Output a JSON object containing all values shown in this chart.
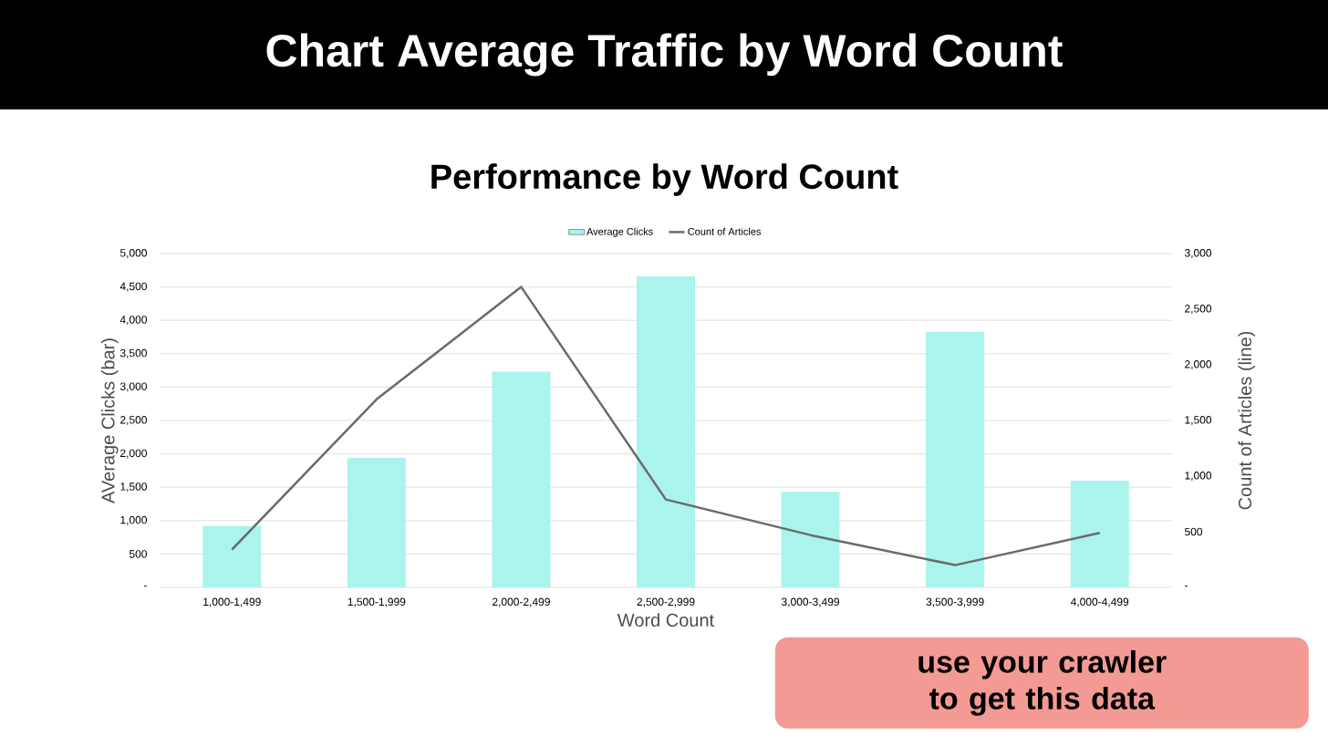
{
  "chart_data": {
    "type": "bar",
    "title": "Chart Average Traffic by Word Count",
    "subtitle": "Performance by Word Count",
    "xlabel": "Word Count",
    "ylabel": "AVerage Clicks (bar)",
    "y2label": "Count of Articles (line)",
    "categories": [
      "1,000-1,499",
      "1,500-1,999",
      "2,000-2,499",
      "2,500-2,999",
      "3,000-3,499",
      "3,500-3,999",
      "4,000-4,499"
    ],
    "series": [
      {
        "name": "Average Clicks",
        "color": "#aaf4ed",
        "values": [
          920,
          1940,
          3230,
          4660,
          1430,
          3830,
          1600
        ]
      },
      {
        "name": "Count of Articles",
        "type": "line",
        "axis": "y2",
        "color": "#6b6b6b",
        "values": [
          340,
          1690,
          2700,
          790,
          470,
          200,
          490
        ]
      }
    ],
    "ylim": [
      0,
      5000
    ],
    "yticks": [
      {
        "value": 0,
        "label": "-"
      },
      {
        "value": 500,
        "label": "500"
      },
      {
        "value": 1000,
        "label": "1,000"
      },
      {
        "value": 1500,
        "label": "1,500"
      },
      {
        "value": 2000,
        "label": "2,000"
      },
      {
        "value": 2500,
        "label": "2,500"
      },
      {
        "value": 3000,
        "label": "3,000"
      },
      {
        "value": 3500,
        "label": "3,500"
      },
      {
        "value": 4000,
        "label": "4,000"
      },
      {
        "value": 4500,
        "label": "4,500"
      },
      {
        "value": 5000,
        "label": "5,000"
      }
    ],
    "y2lim": [
      0,
      3000
    ],
    "y2ticks": [
      {
        "value": 0,
        "label": "-"
      },
      {
        "value": 500,
        "label": "500"
      },
      {
        "value": 1000,
        "label": "1,000"
      },
      {
        "value": 1500,
        "label": "1,500"
      },
      {
        "value": 2000,
        "label": "2,000"
      },
      {
        "value": 2500,
        "label": "2,500"
      },
      {
        "value": 3000,
        "label": "3,000"
      }
    ],
    "grid": "y",
    "legend": "top",
    "annotations": [
      "use your crawler to get this data"
    ]
  }
}
